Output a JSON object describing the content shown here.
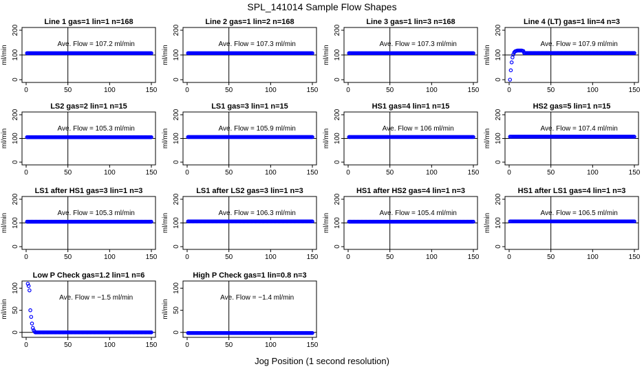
{
  "figure": {
    "title": "SPL_141014  Sample Flow Shapes",
    "xlabel": "Jog Position (1 second resolution)",
    "marker_color": "#0000ff"
  },
  "chart_data": [
    {
      "type": "scatter",
      "title": "Line 1 gas=1 lin=1 n=168",
      "ylabel": "ml/min",
      "annotation": "Ave. Flow = 107.2  ml/min",
      "xlim": [
        0,
        150
      ],
      "ylim": [
        0,
        200
      ],
      "xticks": [
        0,
        50,
        100,
        150
      ],
      "yticks": [
        0,
        100,
        200
      ],
      "vline": 50,
      "hline": 100,
      "ave": 107.2,
      "shape": "flat"
    },
    {
      "type": "scatter",
      "title": "Line 2 gas=1 lin=2 n=168",
      "ylabel": "ml/min",
      "annotation": "Ave. Flow = 107.3  ml/min",
      "xlim": [
        0,
        150
      ],
      "ylim": [
        0,
        200
      ],
      "xticks": [
        0,
        50,
        100,
        150
      ],
      "yticks": [
        0,
        100,
        200
      ],
      "vline": 50,
      "hline": 100,
      "ave": 107.3,
      "shape": "flat"
    },
    {
      "type": "scatter",
      "title": "Line 3 gas=1 lin=3 n=168",
      "ylabel": "ml/min",
      "annotation": "Ave. Flow = 107.3  ml/min",
      "xlim": [
        0,
        150
      ],
      "ylim": [
        0,
        200
      ],
      "xticks": [
        0,
        50,
        100,
        150
      ],
      "yticks": [
        0,
        100,
        200
      ],
      "vline": 50,
      "hline": 100,
      "ave": 107.3,
      "shape": "flat"
    },
    {
      "type": "scatter",
      "title": "Line 4 (LT) gas=1 lin=4 n=3",
      "ylabel": "ml/min",
      "annotation": "Ave. Flow = 107.9  ml/min",
      "xlim": [
        0,
        150
      ],
      "ylim": [
        0,
        200
      ],
      "xticks": [
        0,
        50,
        100,
        150
      ],
      "yticks": [
        0,
        100,
        200
      ],
      "vline": 50,
      "hline": 100,
      "ave": 107.9,
      "shape": "rampup",
      "points": [
        [
          1,
          0
        ],
        [
          2,
          38
        ],
        [
          3,
          70
        ],
        [
          4,
          90
        ],
        [
          5,
          102
        ],
        [
          6,
          110
        ],
        [
          7,
          114
        ],
        [
          8,
          116
        ],
        [
          9,
          117
        ],
        [
          10,
          118
        ],
        [
          11,
          118
        ],
        [
          12,
          118
        ],
        [
          13,
          118
        ],
        [
          14,
          118
        ],
        [
          15,
          118
        ],
        [
          16,
          117
        ],
        [
          17,
          116
        ]
      ]
    },
    {
      "type": "scatter",
      "title": "LS2 gas=2 lin=1 n=15",
      "ylabel": "ml/min",
      "annotation": "Ave. Flow = 105.3  ml/min",
      "xlim": [
        0,
        150
      ],
      "ylim": [
        0,
        200
      ],
      "xticks": [
        0,
        50,
        100,
        150
      ],
      "yticks": [
        0,
        100,
        200
      ],
      "vline": 50,
      "hline": 100,
      "ave": 105.3,
      "shape": "flat"
    },
    {
      "type": "scatter",
      "title": "LS1 gas=3 lin=1 n=15",
      "ylabel": "ml/min",
      "annotation": "Ave. Flow = 105.9  ml/min",
      "xlim": [
        0,
        150
      ],
      "ylim": [
        0,
        200
      ],
      "xticks": [
        0,
        50,
        100,
        150
      ],
      "yticks": [
        0,
        100,
        200
      ],
      "vline": 50,
      "hline": 100,
      "ave": 105.9,
      "shape": "flat"
    },
    {
      "type": "scatter",
      "title": "HS1 gas=4 lin=1 n=15",
      "ylabel": "ml/min",
      "annotation": "Ave. Flow = 106  ml/min",
      "xlim": [
        0,
        150
      ],
      "ylim": [
        0,
        200
      ],
      "xticks": [
        0,
        50,
        100,
        150
      ],
      "yticks": [
        0,
        100,
        200
      ],
      "vline": 50,
      "hline": 100,
      "ave": 106,
      "shape": "flat"
    },
    {
      "type": "scatter",
      "title": "HS2 gas=5 lin=1 n=15",
      "ylabel": "ml/min",
      "annotation": "Ave. Flow = 107.4  ml/min",
      "xlim": [
        0,
        150
      ],
      "ylim": [
        0,
        200
      ],
      "xticks": [
        0,
        50,
        100,
        150
      ],
      "yticks": [
        0,
        100,
        200
      ],
      "vline": 50,
      "hline": 100,
      "ave": 107.4,
      "shape": "flat"
    },
    {
      "type": "scatter",
      "title": "LS1 after HS1 gas=3 lin=1 n=3",
      "ylabel": "ml/min",
      "annotation": "Ave. Flow = 105.3  ml/min",
      "xlim": [
        0,
        150
      ],
      "ylim": [
        0,
        200
      ],
      "xticks": [
        0,
        50,
        100,
        150
      ],
      "yticks": [
        0,
        100,
        200
      ],
      "vline": 50,
      "hline": 100,
      "ave": 105.3,
      "shape": "flat"
    },
    {
      "type": "scatter",
      "title": "LS1 after LS2 gas=3 lin=1 n=3",
      "ylabel": "ml/min",
      "annotation": "Ave. Flow = 106.3  ml/min",
      "xlim": [
        0,
        150
      ],
      "ylim": [
        0,
        200
      ],
      "xticks": [
        0,
        50,
        100,
        150
      ],
      "yticks": [
        0,
        100,
        200
      ],
      "vline": 50,
      "hline": 100,
      "ave": 106.3,
      "shape": "flat"
    },
    {
      "type": "scatter",
      "title": "HS1 after HS2 gas=4 lin=1 n=3",
      "ylabel": "ml/min",
      "annotation": "Ave. Flow = 105.4  ml/min",
      "xlim": [
        0,
        150
      ],
      "ylim": [
        0,
        200
      ],
      "xticks": [
        0,
        50,
        100,
        150
      ],
      "yticks": [
        0,
        100,
        200
      ],
      "vline": 50,
      "hline": 100,
      "ave": 105.4,
      "shape": "flat"
    },
    {
      "type": "scatter",
      "title": "HS1 after LS1 gas=4 lin=1 n=3",
      "ylabel": "ml/min",
      "annotation": "Ave. Flow = 106.5  ml/min",
      "xlim": [
        0,
        150
      ],
      "ylim": [
        0,
        200
      ],
      "xticks": [
        0,
        50,
        100,
        150
      ],
      "yticks": [
        0,
        100,
        200
      ],
      "vline": 50,
      "hline": 100,
      "ave": 106.5,
      "shape": "flat"
    },
    {
      "type": "scatter",
      "title": "Low P Check gas=1.2 lin=1 n=6",
      "ylabel": "ml/min",
      "annotation": "Ave. Flow = −1.5  ml/min",
      "xlim": [
        0,
        150
      ],
      "ylim": [
        -5,
        110
      ],
      "xticks": [
        0,
        50,
        100,
        150
      ],
      "yticks": [
        0,
        50,
        100
      ],
      "vline": 50,
      "hline": 0,
      "ave": -1.5,
      "shape": "decay",
      "points": [
        [
          2,
          110
        ],
        [
          3,
          105
        ],
        [
          4,
          95
        ],
        [
          5,
          50
        ],
        [
          6,
          35
        ],
        [
          7,
          20
        ],
        [
          8,
          10
        ],
        [
          9,
          5
        ],
        [
          10,
          2
        ]
      ]
    },
    {
      "type": "scatter",
      "title": "High P Check gas=1 lin=0.8 n=3",
      "ylabel": "ml/min",
      "annotation": "Ave. Flow = −1.4  ml/min",
      "xlim": [
        0,
        150
      ],
      "ylim": [
        -5,
        110
      ],
      "xticks": [
        0,
        50,
        100,
        150
      ],
      "yticks": [
        0,
        50,
        100
      ],
      "vline": 50,
      "hline": 0,
      "ave": -1.4,
      "shape": "flat"
    }
  ]
}
